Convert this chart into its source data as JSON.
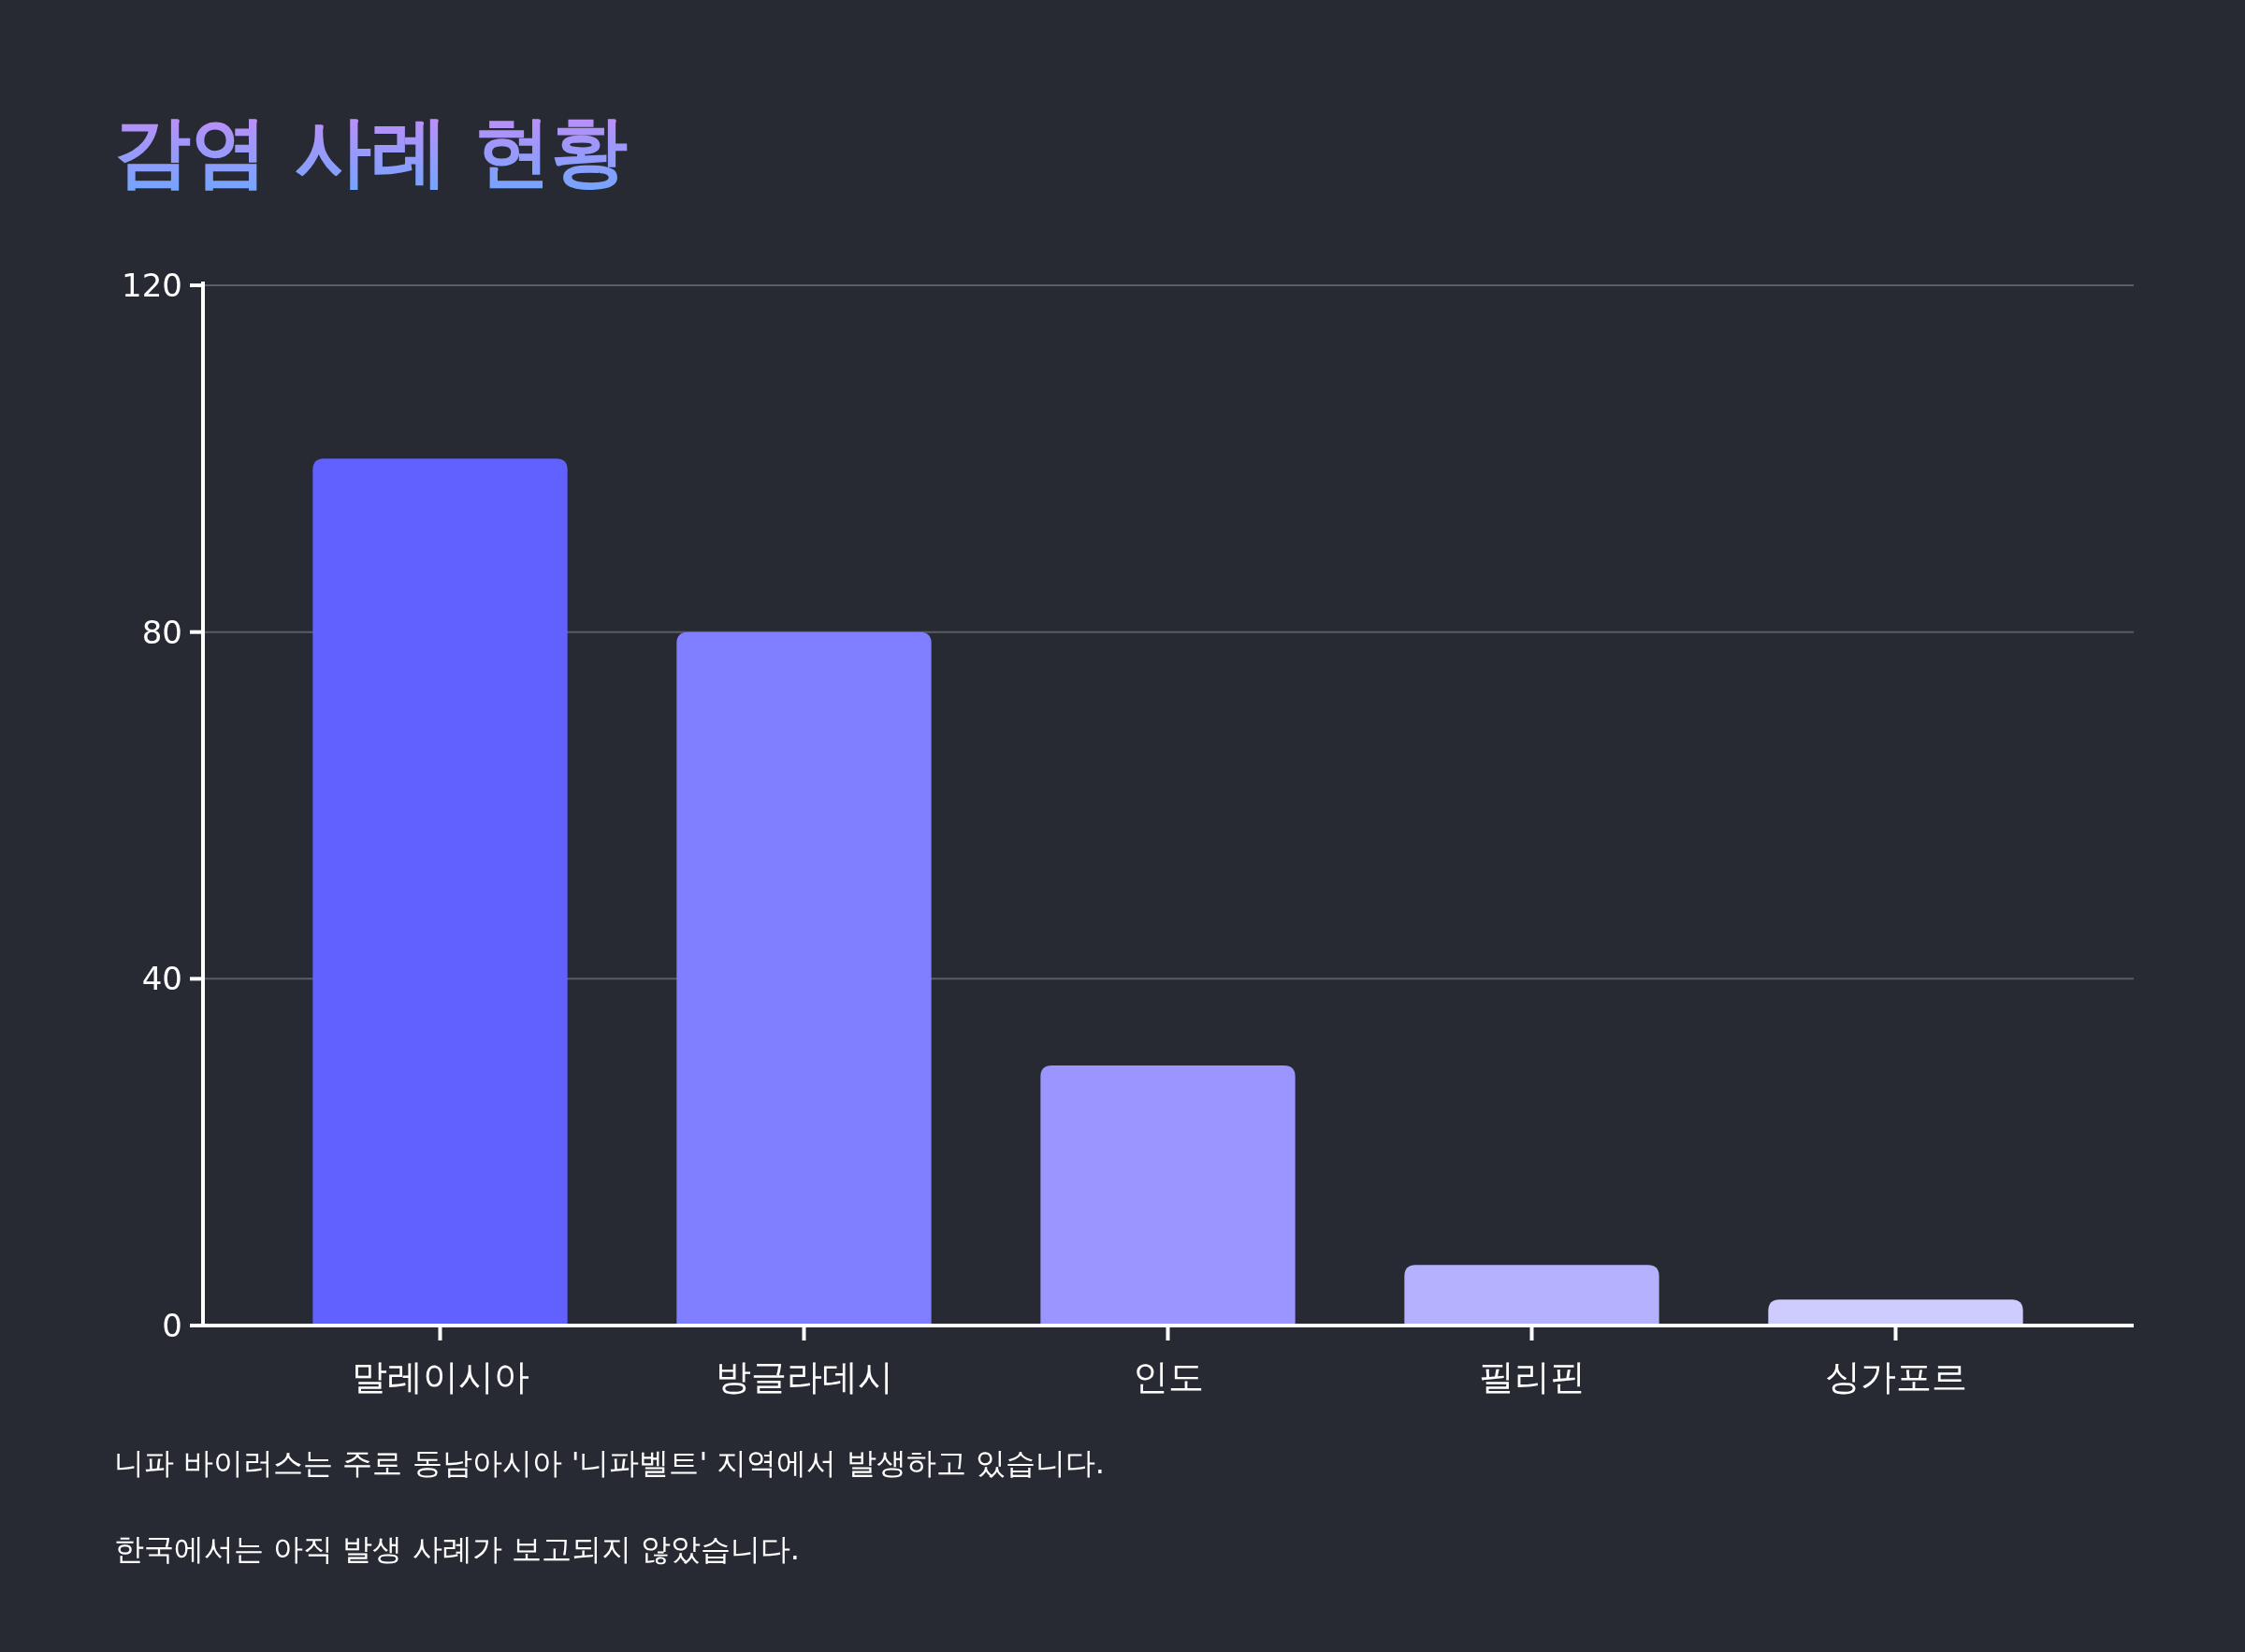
{
  "chart_data": {
    "type": "bar",
    "title": "감염 사례 현황",
    "categories": [
      "말레이시아",
      "방글라데시",
      "인도",
      "필리핀",
      "싱가포르"
    ],
    "values": [
      100,
      80,
      30,
      7,
      3
    ],
    "colors": [
      "#6161ff",
      "#7f7fff",
      "#9b96ff",
      "#b4b2ff",
      "#cecbff"
    ],
    "ylim": [
      0,
      120
    ],
    "yticks": [
      0,
      40,
      80,
      120
    ],
    "grid": "y",
    "annotations": [
      "니파 바이러스는 주로 동남아시아 '니파벨트' 지역에서 발생하고 있습니다.",
      "한국에서는 아직 발생 사례가 보고되지 않았습니다."
    ]
  }
}
